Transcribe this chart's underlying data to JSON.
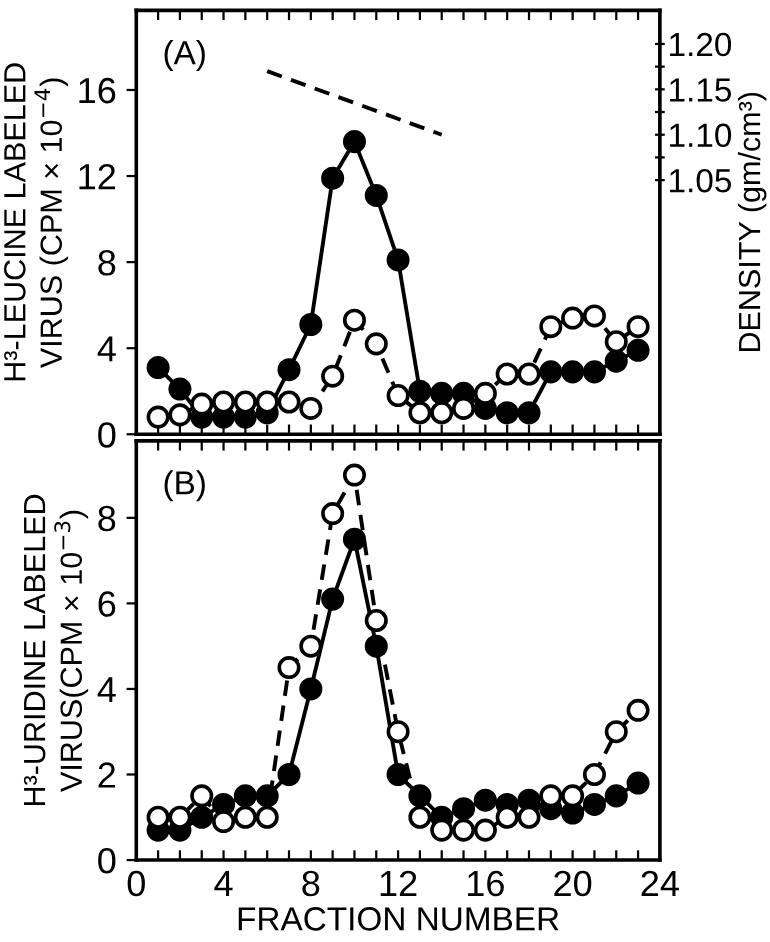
{
  "chart_data": [
    {
      "type": "line",
      "ylabel": "H³-LEUCINE LABELED\nVIRUS (CPM × 10$^{−4}$)",
      "y2label": "DENSITY (gm/cm³)",
      "annotations": [
        "(A)"
      ],
      "xlim": [
        0,
        24
      ],
      "xticks": [
        {
          "value": 0,
          "label": null
        },
        {
          "value": 1,
          "label": null
        },
        {
          "value": 2,
          "label": null
        },
        {
          "value": 3,
          "label": null
        },
        {
          "value": 4,
          "label": null
        },
        {
          "value": 5,
          "label": null
        },
        {
          "value": 6,
          "label": null
        },
        {
          "value": 7,
          "label": null
        },
        {
          "value": 8,
          "label": null
        },
        {
          "value": 9,
          "label": null
        },
        {
          "value": 10,
          "label": null
        },
        {
          "value": 11,
          "label": null
        },
        {
          "value": 12,
          "label": null
        },
        {
          "value": 13,
          "label": null
        },
        {
          "value": 14,
          "label": null
        },
        {
          "value": 15,
          "label": null
        },
        {
          "value": 16,
          "label": null
        },
        {
          "value": 17,
          "label": null
        },
        {
          "value": 18,
          "label": null
        },
        {
          "value": 19,
          "label": null
        },
        {
          "value": 20,
          "label": null
        },
        {
          "value": 21,
          "label": null
        },
        {
          "value": 22,
          "label": null
        },
        {
          "value": 23,
          "label": null
        },
        {
          "value": 24,
          "label": null
        }
      ],
      "ylim": [
        0,
        19.7
      ],
      "yticks": [
        0,
        4,
        8,
        12,
        16
      ],
      "y2lim": [
        0.77,
        1.237
      ],
      "y2ticks": [
        {
          "value": 1.05,
          "label": "1.05"
        },
        {
          "value": 1.075,
          "label": null
        },
        {
          "value": 1.1,
          "label": "1.10"
        },
        {
          "value": 1.125,
          "label": null
        },
        {
          "value": 1.15,
          "label": "1.15"
        },
        {
          "value": 1.175,
          "label": null
        },
        {
          "value": 1.2,
          "label": "1.20"
        }
      ],
      "tick_labels": "y",
      "grid": false,
      "legend": false,
      "series": [
        {
          "color": "#000000",
          "marker": "circle",
          "line_style": "solid",
          "x": [
            1,
            2,
            3,
            4,
            5,
            6,
            7,
            8,
            9,
            10,
            11,
            12,
            13,
            14,
            15,
            16,
            17,
            18,
            19,
            20,
            21,
            22,
            23
          ],
          "values": [
            3.1,
            2.1,
            0.8,
            0.8,
            0.8,
            1.0,
            3.0,
            5.1,
            11.9,
            13.6,
            11.1,
            8.1,
            2.0,
            1.9,
            1.9,
            1.2,
            1.0,
            1.0,
            2.9,
            2.9,
            2.9,
            3.4,
            3.9
          ]
        },
        {
          "color": "#ffffff",
          "marker": "circle",
          "line_style": "dashed",
          "x": [
            1,
            2,
            3,
            4,
            5,
            6,
            7,
            8,
            9,
            10,
            11,
            12,
            13,
            14,
            15,
            16,
            17,
            18,
            19,
            20,
            21,
            22,
            23
          ],
          "values": [
            0.8,
            0.9,
            1.4,
            1.5,
            1.5,
            1.5,
            1.5,
            1.2,
            2.7,
            5.3,
            4.2,
            1.8,
            1.0,
            1.0,
            1.2,
            1.9,
            2.8,
            2.8,
            5.0,
            5.4,
            5.5,
            4.3,
            5.0
          ]
        },
        {
          "color": "#000000",
          "marker": "none",
          "line_style": "dashed",
          "axis": "y2",
          "x": [
            6,
            14
          ],
          "values": [
            1.17,
            1.1
          ]
        }
      ]
    },
    {
      "type": "line",
      "xlabel": "FRACTION NUMBER",
      "ylabel": "H³-URIDINE LABELED\nVIRUS(CPM × 10$^{−3}$)",
      "annotations": [
        "(B)"
      ],
      "xlim": [
        0,
        24
      ],
      "xticks": [
        0,
        {
          "value": 1,
          "label": null
        },
        {
          "value": 2,
          "label": null
        },
        {
          "value": 3,
          "label": null
        },
        4,
        {
          "value": 5,
          "label": null
        },
        {
          "value": 6,
          "label": null
        },
        {
          "value": 7,
          "label": null
        },
        8,
        {
          "value": 9,
          "label": null
        },
        {
          "value": 10,
          "label": null
        },
        {
          "value": 11,
          "label": null
        },
        12,
        {
          "value": 13,
          "label": null
        },
        {
          "value": 14,
          "label": null
        },
        {
          "value": 15,
          "label": null
        },
        16,
        {
          "value": 17,
          "label": null
        },
        {
          "value": 18,
          "label": null
        },
        {
          "value": 19,
          "label": null
        },
        20,
        {
          "value": 21,
          "label": null
        },
        {
          "value": 22,
          "label": null
        },
        {
          "value": 23,
          "label": null
        },
        24
      ],
      "ylim": [
        0,
        9.8
      ],
      "yticks": [
        0,
        2,
        4,
        6,
        8
      ],
      "grid": false,
      "legend": false,
      "series": [
        {
          "color": "#000000",
          "marker": "circle",
          "line_style": "solid",
          "x": [
            1,
            2,
            3,
            4,
            5,
            6,
            7,
            8,
            9,
            10,
            11,
            12,
            13,
            14,
            15,
            16,
            17,
            18,
            19,
            20,
            21,
            22,
            23
          ],
          "values": [
            0.7,
            0.7,
            1.0,
            1.3,
            1.5,
            1.5,
            2.0,
            4.0,
            6.1,
            7.5,
            5.0,
            2.0,
            1.5,
            1.0,
            1.2,
            1.4,
            1.3,
            1.4,
            1.2,
            1.1,
            1.3,
            1.5,
            1.8
          ]
        },
        {
          "color": "#ffffff",
          "marker": "circle",
          "line_style": "dashed",
          "x": [
            1,
            2,
            3,
            4,
            5,
            6,
            7,
            8,
            9,
            10,
            11,
            12,
            13,
            14,
            15,
            16,
            17,
            18,
            19,
            20,
            21,
            22,
            23
          ],
          "values": [
            1.0,
            1.0,
            1.5,
            0.9,
            1.0,
            1.0,
            4.5,
            5.0,
            8.1,
            9.0,
            5.6,
            3.0,
            1.0,
            0.7,
            0.7,
            0.7,
            1.0,
            1.0,
            1.5,
            1.5,
            2.0,
            3.0,
            3.5
          ]
        }
      ]
    }
  ]
}
